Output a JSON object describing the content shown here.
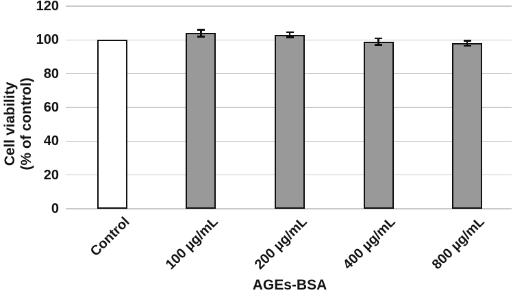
{
  "figure": {
    "y_axis_title_line1": "Cell viability",
    "y_axis_title_line2": "(% of control)",
    "x_axis_title": "AGEs-BSA"
  },
  "chart_data": {
    "type": "bar",
    "title": "",
    "xlabel": "AGEs-BSA",
    "ylabel": "Cell viability (% of control)",
    "categories": [
      "Control",
      "100 µg/mL",
      "200 µg/mL",
      "400 µg/mL",
      "800 µg/mL"
    ],
    "series": [
      {
        "name": "Cell viability (% of control)",
        "values": [
          100,
          104,
          103,
          99,
          98
        ],
        "error_bars": [
          0,
          2,
          1.5,
          2,
          1.5
        ]
      }
    ],
    "ylim": [
      0,
      120
    ],
    "yticks": [
      0,
      20,
      40,
      60,
      80,
      100,
      120
    ],
    "grid": true,
    "legend": false,
    "bar_fill_colors": [
      "#ffffff",
      "#999999",
      "#999999",
      "#999999",
      "#999999"
    ],
    "bar_border_color": "#0f0f0f",
    "gridline_color": "#c9c9c9",
    "text_color": "#111111"
  }
}
